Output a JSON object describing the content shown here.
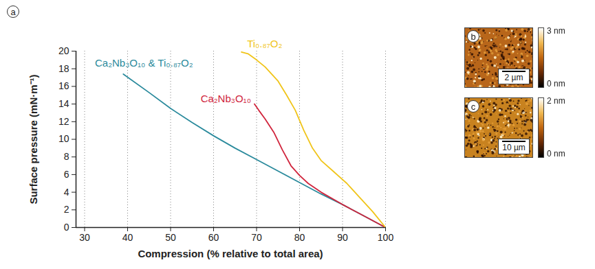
{
  "panel_label": "a",
  "chart_data": {
    "type": "line",
    "xlabel": "Compression (% relative to total area)",
    "ylabel": "Surface pressure (mN·m⁻¹)",
    "xlim": [
      28,
      100
    ],
    "xticks": [
      30,
      40,
      50,
      60,
      70,
      80,
      90,
      100
    ],
    "ylim": [
      0,
      20
    ],
    "yticks": [
      0,
      2,
      4,
      6,
      8,
      10,
      12,
      14,
      16,
      18,
      20
    ],
    "grid": true,
    "series": [
      {
        "name": "Ca₂Nb₃O₁₀ & Ti₀.₈₇O₂",
        "color": "#2a8a9c",
        "x": [
          100,
          95,
          90,
          85,
          80,
          75,
          70,
          65,
          60,
          55,
          50,
          45,
          39
        ],
        "values": [
          0,
          1.3,
          2.6,
          3.8,
          5.1,
          6.4,
          7.7,
          9.0,
          10.4,
          11.9,
          13.5,
          15.3,
          17.4
        ]
      },
      {
        "name": "Ca₂Nb₃O₁₀",
        "color": "#d0243c",
        "x": [
          100,
          95,
          90,
          85,
          82,
          80,
          78,
          76,
          74,
          72,
          70.5,
          69.5
        ],
        "values": [
          0,
          1.3,
          2.6,
          4.0,
          5.0,
          5.9,
          7.0,
          8.8,
          10.8,
          12.3,
          13.3,
          14.0
        ]
      },
      {
        "name": "Ti₀.₈₇O₂",
        "color": "#f0c419",
        "x": [
          100,
          97,
          94,
          91,
          88,
          85,
          83,
          81,
          79,
          77,
          75,
          72,
          70,
          68,
          66.5
        ],
        "values": [
          0,
          1.8,
          3.4,
          5.0,
          6.3,
          7.6,
          9.0,
          11.0,
          13.3,
          15.0,
          16.6,
          18.2,
          19.0,
          19.7,
          19.9
        ]
      }
    ]
  },
  "images": [
    {
      "label": "b",
      "scale_bar": "2 µm",
      "colorbar": {
        "range": [
          0,
          3
        ],
        "ticks": [
          {
            "value": 3,
            "label": "3 nm"
          },
          {
            "value": 0,
            "label": "0 nm"
          }
        ]
      }
    },
    {
      "label": "c",
      "scale_bar": "10 µm",
      "colorbar": {
        "range": [
          0,
          2
        ],
        "ticks": [
          {
            "value": 2,
            "label": "2 nm"
          },
          {
            "value": 0,
            "label": "0 nm"
          }
        ]
      }
    }
  ]
}
